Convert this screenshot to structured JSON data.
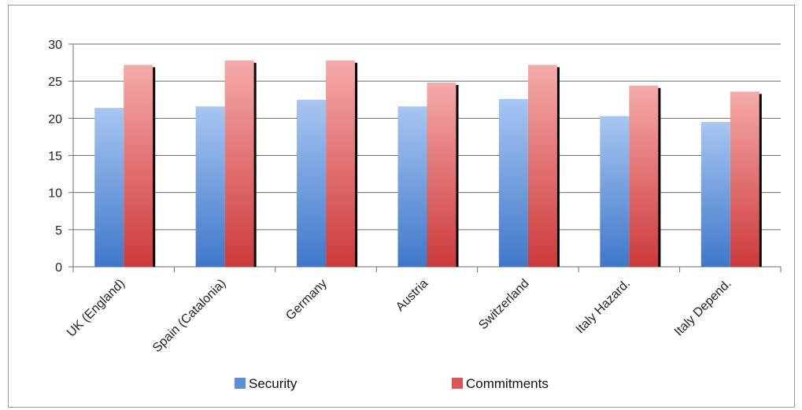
{
  "chart_data": {
    "type": "bar",
    "title": "",
    "xlabel": "",
    "ylabel": "",
    "ylim": [
      0,
      30
    ],
    "yticks": [
      0,
      5,
      10,
      15,
      20,
      25,
      30
    ],
    "grid": "horizontal",
    "legend_position": "bottom",
    "categories": [
      "UK (England)",
      "Spain (Catalonia)",
      "Germany",
      "Austria",
      "Switzerland",
      "Italy Hazard.",
      "Italy Depend."
    ],
    "series": [
      {
        "name": "Security",
        "color": "#5b8fd6",
        "values": [
          21.4,
          21.6,
          22.5,
          21.6,
          22.6,
          20.3,
          19.5
        ]
      },
      {
        "name": "Commitments",
        "color": "#dc5555",
        "values": [
          27.2,
          27.8,
          27.8,
          24.8,
          27.2,
          24.4,
          23.6
        ]
      }
    ]
  }
}
